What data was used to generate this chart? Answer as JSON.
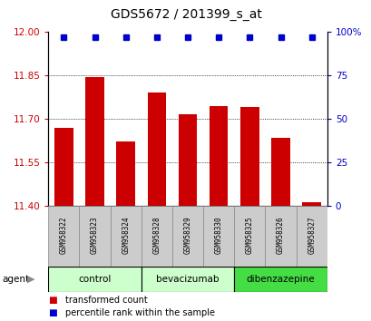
{
  "title": "GDS5672 / 201399_s_at",
  "samples": [
    "GSM958322",
    "GSM958323",
    "GSM958324",
    "GSM958328",
    "GSM958329",
    "GSM958330",
    "GSM958325",
    "GSM958326",
    "GSM958327"
  ],
  "bar_values": [
    11.67,
    11.845,
    11.62,
    11.79,
    11.715,
    11.745,
    11.74,
    11.635,
    11.41
  ],
  "percentile_values": [
    97,
    97,
    97,
    97,
    97,
    97,
    97,
    97,
    97
  ],
  "ylim_left": [
    11.4,
    12.0
  ],
  "ylim_right": [
    0,
    100
  ],
  "yticks_left": [
    11.4,
    11.55,
    11.7,
    11.85,
    12.0
  ],
  "yticks_right": [
    0,
    25,
    50,
    75,
    100
  ],
  "bar_color": "#cc0000",
  "dot_color": "#0000cc",
  "groups": [
    {
      "label": "control",
      "start": 0,
      "end": 2,
      "color": "#ccffcc"
    },
    {
      "label": "bevacizumab",
      "start": 3,
      "end": 5,
      "color": "#ccffcc"
    },
    {
      "label": "dibenzazepine",
      "start": 6,
      "end": 8,
      "color": "#44dd44"
    }
  ],
  "agent_label": "agent",
  "legend_bar_label": "transformed count",
  "legend_dot_label": "percentile rank within the sample",
  "bar_width": 0.6,
  "sample_box_color": "#cccccc",
  "spine_color": "#000000"
}
